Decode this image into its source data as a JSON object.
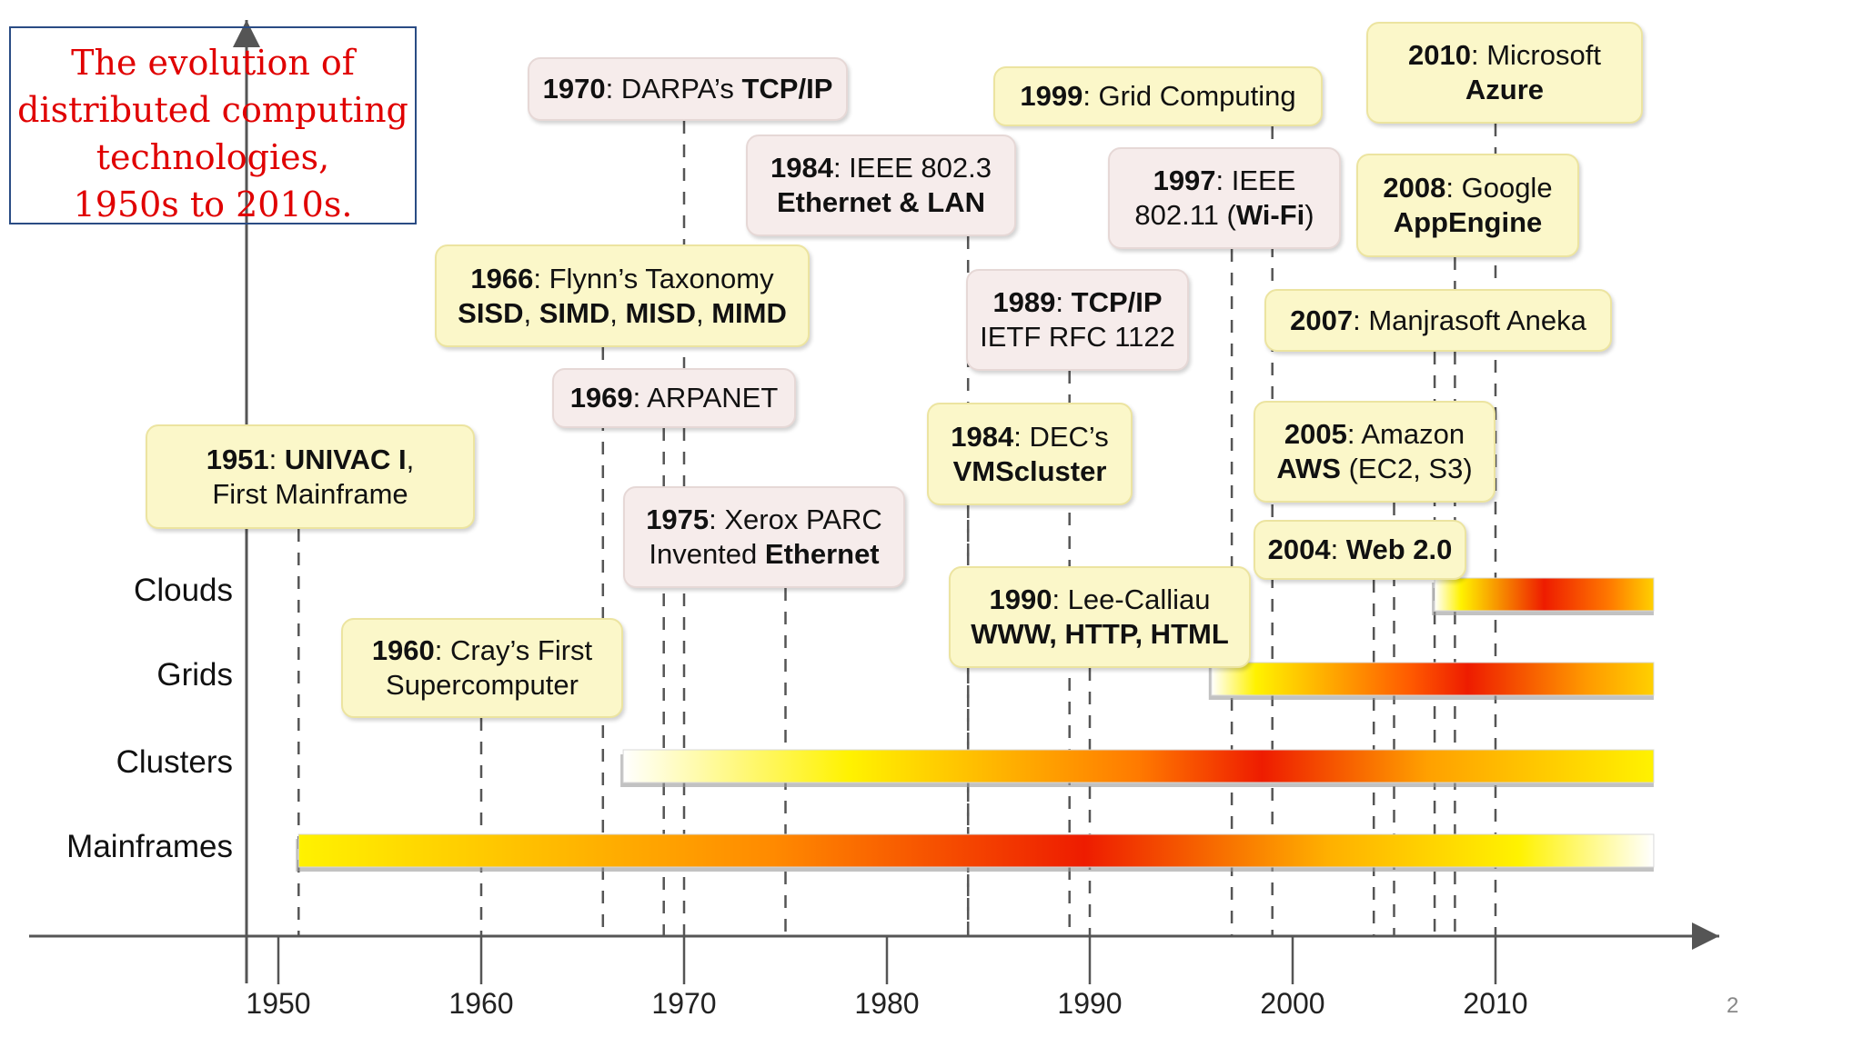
{
  "title": [
    "The evolution of",
    "distributed computing",
    "technologies,",
    "1950s to 2010s."
  ],
  "page_number": "2",
  "rows": [
    "Clouds",
    "Grids",
    "Clusters",
    "Mainframes"
  ],
  "ticks": [
    "1950",
    "1960",
    "1970",
    "1980",
    "1990",
    "2000",
    "2010"
  ],
  "colors": {
    "bar_yellow": "#fff200",
    "bar_red": "#ee1c00",
    "bar_orange": "#ff9a00",
    "title_red": "#e00000",
    "title_border": "#2a4c84",
    "note_yellow": "#fbf7c9",
    "note_pink": "#f6eceb"
  },
  "eras": [
    {
      "name": "Mainframes",
      "start": 1951,
      "end": 2018
    },
    {
      "name": "Clusters",
      "start": 1967,
      "end": 2018
    },
    {
      "name": "Grids",
      "start": 1996,
      "end": 2018
    },
    {
      "name": "Clouds",
      "start": 2007,
      "end": 2018
    }
  ],
  "events": [
    {
      "year": 1951,
      "style": "yellow",
      "lines": [
        [
          [
            "1951",
            true
          ],
          [
            ":  ",
            false
          ],
          [
            "UNIVAC I",
            true
          ],
          [
            ",",
            false
          ]
        ],
        [
          [
            "First Mainframe",
            false
          ]
        ]
      ]
    },
    {
      "year": 1960,
      "style": "yellow",
      "lines": [
        [
          [
            "1960",
            true
          ],
          [
            ":  Cray’s First",
            false
          ]
        ],
        [
          [
            "Supercomputer",
            false
          ]
        ]
      ]
    },
    {
      "year": 1966,
      "style": "yellow",
      "lines": [
        [
          [
            "1966",
            true
          ],
          [
            ": Flynn’s Taxonomy",
            false
          ]
        ],
        [
          [
            "SISD",
            true
          ],
          [
            ", ",
            false
          ],
          [
            "SIMD",
            true
          ],
          [
            ", ",
            false
          ],
          [
            "MISD",
            true
          ],
          [
            ", ",
            false
          ],
          [
            "MIMD",
            true
          ]
        ]
      ]
    },
    {
      "year": 1969,
      "style": "pink",
      "lines": [
        [
          [
            "1969",
            true
          ],
          [
            ": ARPANET",
            false
          ]
        ]
      ]
    },
    {
      "year": 1970,
      "style": "pink",
      "lines": [
        [
          [
            "1970",
            true
          ],
          [
            ": DARPA’s ",
            false
          ],
          [
            "TCP/IP",
            true
          ]
        ]
      ]
    },
    {
      "year": 1975,
      "style": "pink",
      "lines": [
        [
          [
            "1975",
            true
          ],
          [
            ":  Xerox PARC",
            false
          ]
        ],
        [
          [
            "Invented ",
            false
          ],
          [
            "Ethernet",
            true
          ]
        ]
      ]
    },
    {
      "year": 1984,
      "style": "pink",
      "lines": [
        [
          [
            "1984",
            true
          ],
          [
            ": IEEE 802.3",
            false
          ]
        ],
        [
          [
            "Ethernet & LAN",
            true
          ]
        ]
      ]
    },
    {
      "year": 1984,
      "style": "yellow",
      "lines": [
        [
          [
            "1984",
            true
          ],
          [
            ": DEC’s",
            false
          ]
        ],
        [
          [
            "VMScluster",
            true
          ]
        ]
      ]
    },
    {
      "year": 1989,
      "style": "pink",
      "lines": [
        [
          [
            "1989",
            true
          ],
          [
            ": ",
            false
          ],
          [
            "TCP/IP",
            true
          ]
        ],
        [
          [
            "IETF RFC 1122",
            false
          ]
        ]
      ]
    },
    {
      "year": 1990,
      "style": "yellow",
      "lines": [
        [
          [
            "1990",
            true
          ],
          [
            ": Lee-Calliau",
            false
          ]
        ],
        [
          [
            "WWW, HTTP, HTML",
            true
          ]
        ]
      ]
    },
    {
      "year": 1997,
      "style": "pink",
      "lines": [
        [
          [
            "1997",
            true
          ],
          [
            ": IEEE",
            false
          ]
        ],
        [
          [
            "802.11 (",
            false
          ],
          [
            "Wi-Fi",
            true
          ],
          [
            ")",
            false
          ]
        ]
      ]
    },
    {
      "year": 1999,
      "style": "yellow",
      "lines": [
        [
          [
            "1999",
            true
          ],
          [
            ": Grid Computing",
            false
          ]
        ]
      ]
    },
    {
      "year": 2004,
      "style": "yellow",
      "lines": [
        [
          [
            "2004",
            true
          ],
          [
            ": ",
            false
          ],
          [
            "Web 2.0",
            true
          ]
        ]
      ]
    },
    {
      "year": 2005,
      "style": "yellow",
      "lines": [
        [
          [
            "2005",
            true
          ],
          [
            ": Amazon",
            false
          ]
        ],
        [
          [
            "AWS",
            true
          ],
          [
            " (EC2, S3)",
            false
          ]
        ]
      ]
    },
    {
      "year": 2007,
      "style": "yellow",
      "lines": [
        [
          [
            "2007",
            true
          ],
          [
            ": Manjrasoft Aneka",
            false
          ]
        ]
      ]
    },
    {
      "year": 2008,
      "style": "yellow",
      "lines": [
        [
          [
            "2008",
            true
          ],
          [
            ": Google",
            false
          ]
        ],
        [
          [
            "AppEngine",
            true
          ]
        ]
      ]
    },
    {
      "year": 2010,
      "style": "yellow",
      "lines": [
        [
          [
            "2010",
            true
          ],
          [
            ": Microsoft",
            false
          ]
        ],
        [
          [
            "Azure",
            true
          ]
        ]
      ]
    }
  ]
}
